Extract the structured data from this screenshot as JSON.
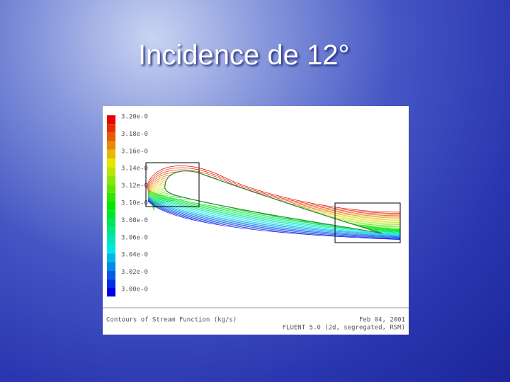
{
  "header": {
    "title": "Incidence de 12°"
  },
  "figure": {
    "legend_labels": [
      "3.20e-0",
      "3.18e-0",
      "3.16e-0",
      "3.14e-0",
      "3.12e-0",
      "3.10e-0",
      "3.08e-0",
      "3.06e-0",
      "3.04e-0",
      "3.02e-0",
      "3.00e-0"
    ],
    "caption": "Contours of Stream Function (kg/s)",
    "date": "Feb 04, 2001",
    "solver": "FLUENT 5.0 (2d, segregated, RSM)"
  }
}
